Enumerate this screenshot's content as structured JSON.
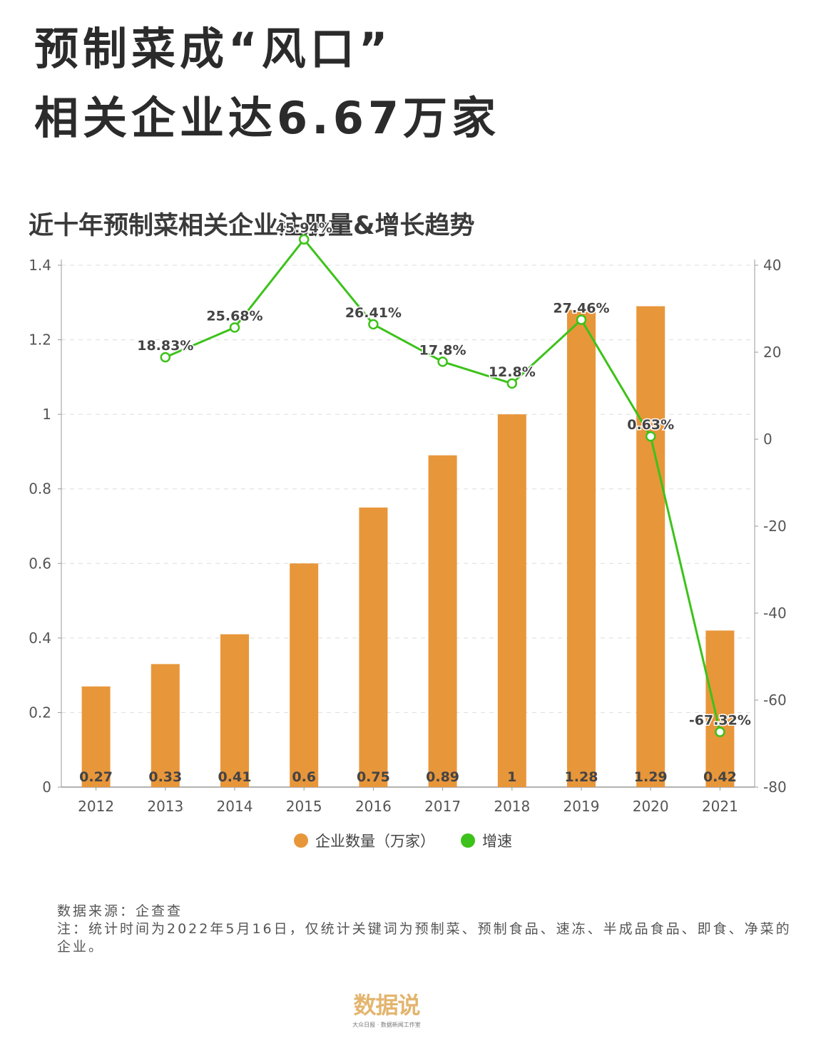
{
  "headline": {
    "line1": "预制菜成“风口”",
    "line2": "相关企业达6.67万家"
  },
  "chart_data": {
    "type": "bar",
    "title": "近十年预制菜相关企业注册量&增长趋势",
    "categories": [
      "2012",
      "2013",
      "2014",
      "2015",
      "2016",
      "2017",
      "2018",
      "2019",
      "2020",
      "2021"
    ],
    "series": [
      {
        "name": "企业数量（万家）",
        "type": "bar",
        "axis": "left",
        "color": "#e8963a",
        "values": [
          0.27,
          0.33,
          0.41,
          0.6,
          0.75,
          0.89,
          1,
          1.28,
          1.29,
          0.42
        ],
        "labels": [
          "0.27",
          "0.33",
          "0.41",
          "0.6",
          "0.75",
          "0.89",
          "1",
          "1.28",
          "1.29",
          "0.42"
        ]
      },
      {
        "name": "增速",
        "type": "line",
        "axis": "right",
        "color": "#3cc21a",
        "values": [
          null,
          18.83,
          25.68,
          45.94,
          26.41,
          17.8,
          12.8,
          27.46,
          0.63,
          -67.32
        ],
        "labels": [
          "",
          "18.83%",
          "25.68%",
          "45.94%",
          "26.41%",
          "17.8%",
          "12.8%",
          "27.46%",
          "0.63%",
          "-67.32%"
        ]
      }
    ],
    "y_left": {
      "min": 0,
      "max": 1.4,
      "ticks": [
        "0",
        "0.2",
        "0.4",
        "0.6",
        "0.8",
        "1",
        "1.2",
        "1.4"
      ]
    },
    "y_right": {
      "min": -80,
      "max": 40,
      "ticks": [
        "-80",
        "-60",
        "-40",
        "-20",
        "0",
        "20",
        "40"
      ]
    },
    "grid": true,
    "legend_position": "bottom-center"
  },
  "notes": {
    "source": "数据来源：企查查",
    "note": "注：统计时间为2022年5月16日，仅统计关键词为预制菜、预制食品、速冻、半成品食品、即食、净菜的企业。"
  },
  "logo": {
    "mark": "数据说",
    "sub": "大众日报 · 数据新闻工作室"
  }
}
